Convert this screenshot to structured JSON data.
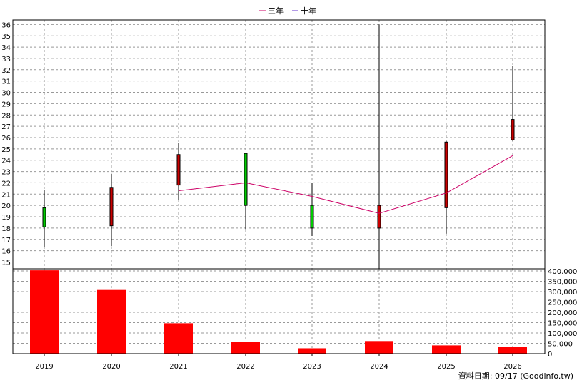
{
  "chart_data": {
    "type": "candlestick",
    "legend": [
      {
        "name": "三年",
        "color": "#cc0066"
      },
      {
        "name": "十年",
        "color": "#6633cc"
      }
    ],
    "legend_placement": "top-center",
    "grid": true,
    "footer": "資料日期: 09/17  (Goodinfo.tw)",
    "categories": [
      "2019",
      "2020",
      "2021",
      "2022",
      "2023",
      "2024",
      "2025",
      "2026"
    ],
    "price": {
      "ylim": [
        14.4,
        36.4
      ],
      "yticks": [
        15,
        16,
        17,
        18,
        19,
        20,
        21,
        22,
        23,
        24,
        25,
        26,
        27,
        28,
        29,
        30,
        31,
        32,
        33,
        34,
        35,
        36
      ],
      "ohlc": [
        {
          "year": "2019",
          "open": 18.1,
          "high": 21.4,
          "low": 16.3,
          "close": 19.8,
          "color": "green"
        },
        {
          "year": "2020",
          "open": 21.6,
          "high": 22.8,
          "low": 16.4,
          "close": 18.2,
          "color": "red"
        },
        {
          "year": "2021",
          "open": 24.5,
          "high": 25.5,
          "low": 20.5,
          "close": 21.8,
          "color": "red"
        },
        {
          "year": "2022",
          "open": 20.0,
          "high": 24.6,
          "low": 17.9,
          "close": 24.6,
          "color": "green"
        },
        {
          "year": "2023",
          "open": 18.0,
          "high": 22.0,
          "low": 17.3,
          "close": 20.0,
          "color": "green"
        },
        {
          "year": "2024",
          "open": 20.0,
          "high": 36.0,
          "low": 14.4,
          "close": 18.0,
          "color": "red"
        },
        {
          "year": "2025",
          "open": 25.6,
          "high": 25.7,
          "low": 17.5,
          "close": 19.8,
          "color": "red"
        },
        {
          "year": "2026",
          "open": 27.6,
          "high": 32.3,
          "low": 25.7,
          "close": 25.8,
          "color": "red"
        }
      ],
      "three_year_line": [
        {
          "year": "2021",
          "value": 21.3
        },
        {
          "year": "2022",
          "value": 22.0
        },
        {
          "year": "2023",
          "value": 20.8
        },
        {
          "year": "2024",
          "value": 19.3
        },
        {
          "year": "2025",
          "value": 21.1
        },
        {
          "year": "2026",
          "value": 24.4
        }
      ]
    },
    "volume": {
      "ylim": [
        0,
        400000
      ],
      "yticks": [
        0,
        50000,
        100000,
        150000,
        200000,
        250000,
        300000,
        350000,
        400000
      ],
      "ytick_labels": [
        "0",
        "50,000",
        "100,000",
        "150,000",
        "200,000",
        "250,000",
        "300,000",
        "350,000",
        "400,000"
      ],
      "values": [
        403000,
        308000,
        147000,
        57000,
        26000,
        61000,
        40000,
        32000
      ],
      "color": "#ff0000"
    }
  }
}
